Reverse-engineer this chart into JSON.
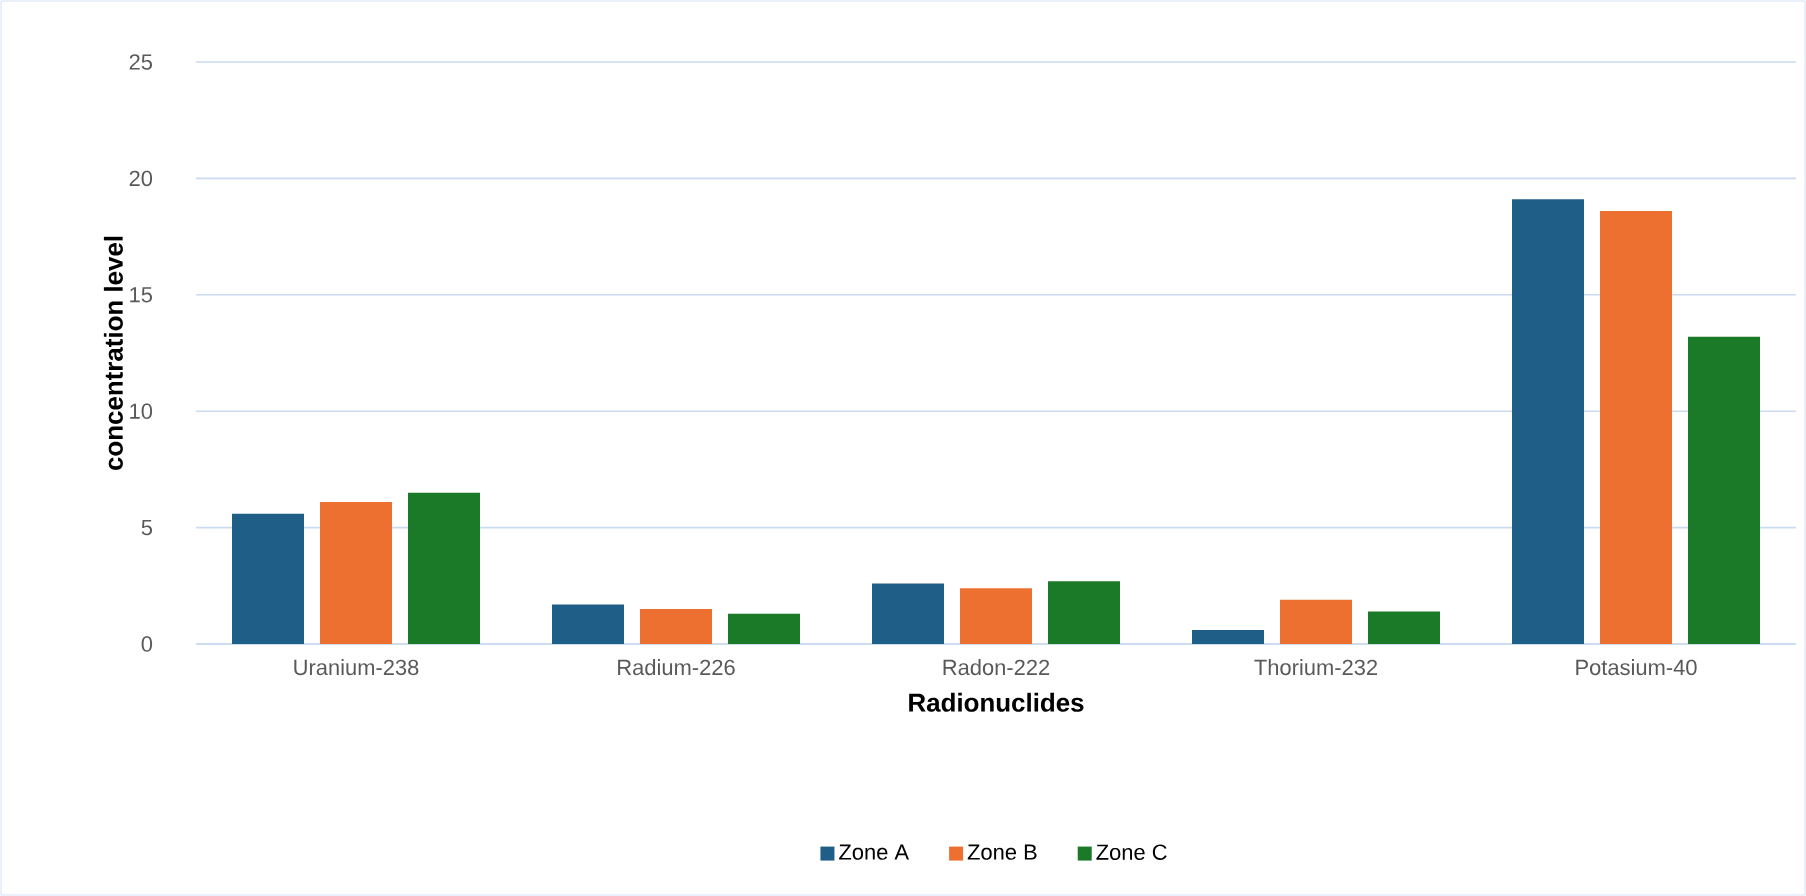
{
  "chart_data": {
    "type": "bar",
    "xlabel": "Radionuclides",
    "ylabel": "concentration level",
    "categories": [
      "Uranium-238",
      "Radium-226",
      "Radon-222",
      "Thorium-232",
      "Potasium-40"
    ],
    "series": [
      {
        "name": "Zone A",
        "color": "#1f5f87",
        "values": [
          5.6,
          1.7,
          2.6,
          0.6,
          19.1
        ]
      },
      {
        "name": "Zone B",
        "color": "#ed7031",
        "values": [
          6.1,
          1.5,
          2.4,
          1.9,
          18.6
        ]
      },
      {
        "name": "Zone C",
        "color": "#1b7a27",
        "values": [
          6.5,
          1.3,
          2.7,
          1.4,
          13.2
        ]
      }
    ],
    "ylim": [
      0,
      25
    ],
    "yticks": [
      0,
      5,
      10,
      15,
      20,
      25
    ],
    "grid": "y",
    "legend": "bottom"
  }
}
